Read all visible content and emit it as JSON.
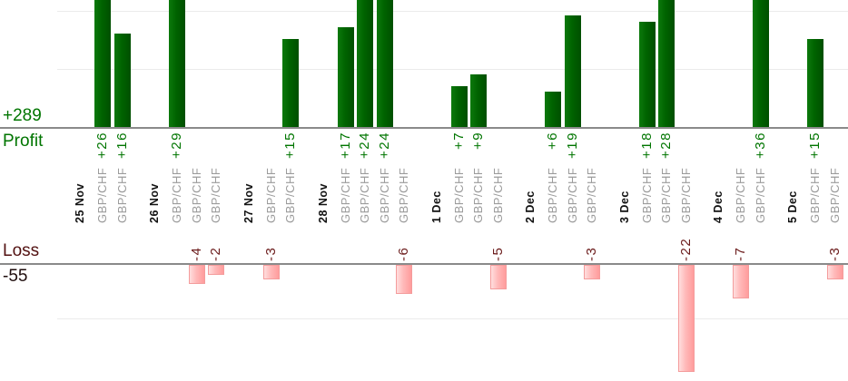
{
  "summary": {
    "profit_total": "+289",
    "profit_label": "Profit",
    "loss_label": "Loss",
    "loss_total": "-55"
  },
  "colors": {
    "profit_text": "#007500",
    "profit_bar_start": "#0c790c",
    "profit_bar_mid": "#006300",
    "profit_bar_end": "#004f00",
    "loss_value_text": "#6b1b1b",
    "loss_label_text": "#521111",
    "loss_total_text": "#1f0d0d",
    "loss_bar_start": "#ffdede",
    "loss_bar_mid": "#ffb9b9",
    "loss_bar_end": "#ff9c9c",
    "loss_bar_border": "#f49c9c",
    "date_text": "#111111",
    "symbol_text": "#9b9b9b",
    "axis_line": "#8a8a8a",
    "gridline": "#ebebeb",
    "background": "#ffffff"
  },
  "chart_data": {
    "type": "bar",
    "orientation": "vertical",
    "upper_axis_label": "Profit",
    "upper_axis_total": "+289",
    "lower_axis_label": "Loss",
    "lower_axis_total": "-55",
    "profit_gridline_values": [
      10,
      20
    ],
    "loss_gridline_values": [
      -11
    ],
    "legend_position": "none",
    "groups": [
      {
        "date": "25 Nov",
        "trades": [
          {
            "symbol": "GBP/CHF",
            "value": 26
          },
          {
            "symbol": "GBP/CHF",
            "value": 16
          }
        ]
      },
      {
        "date": "26 Nov",
        "trades": [
          {
            "symbol": "GBP/CHF",
            "value": 29
          },
          {
            "symbol": "GBP/CHF",
            "value": -4
          },
          {
            "symbol": "GBP/CHF",
            "value": -2
          }
        ]
      },
      {
        "date": "27 Nov",
        "trades": [
          {
            "symbol": "GBP/CHF",
            "value": -3
          },
          {
            "symbol": "GBP/CHF",
            "value": 15
          }
        ]
      },
      {
        "date": "28 Nov",
        "trades": [
          {
            "symbol": "GBP/CHF",
            "value": 17
          },
          {
            "symbol": "GBP/CHF",
            "value": 24
          },
          {
            "symbol": "GBP/CHF",
            "value": 24
          },
          {
            "symbol": "GBP/CHF",
            "value": -6
          }
        ]
      },
      {
        "date": "1 Dec",
        "trades": [
          {
            "symbol": "GBP/CHF",
            "value": 7
          },
          {
            "symbol": "GBP/CHF",
            "value": 9
          },
          {
            "symbol": "GBP/CHF",
            "value": -5
          }
        ]
      },
      {
        "date": "2 Dec",
        "trades": [
          {
            "symbol": "GBP/CHF",
            "value": 6
          },
          {
            "symbol": "GBP/CHF",
            "value": 19
          },
          {
            "symbol": "GBP/CHF",
            "value": -3
          }
        ]
      },
      {
        "date": "3 Dec",
        "trades": [
          {
            "symbol": "GBP/CHF",
            "value": 18
          },
          {
            "symbol": "GBP/CHF",
            "value": 28
          },
          {
            "symbol": "GBP/CHF",
            "value": -22
          }
        ]
      },
      {
        "date": "4 Dec",
        "trades": [
          {
            "symbol": "GBP/CHF",
            "value": -7
          },
          {
            "symbol": "GBP/CHF",
            "value": 36
          }
        ]
      },
      {
        "date": "5 Dec",
        "trades": [
          {
            "symbol": "GBP/CHF",
            "value": 15
          },
          {
            "symbol": "GBP/CHF",
            "value": -3
          }
        ]
      }
    ]
  }
}
